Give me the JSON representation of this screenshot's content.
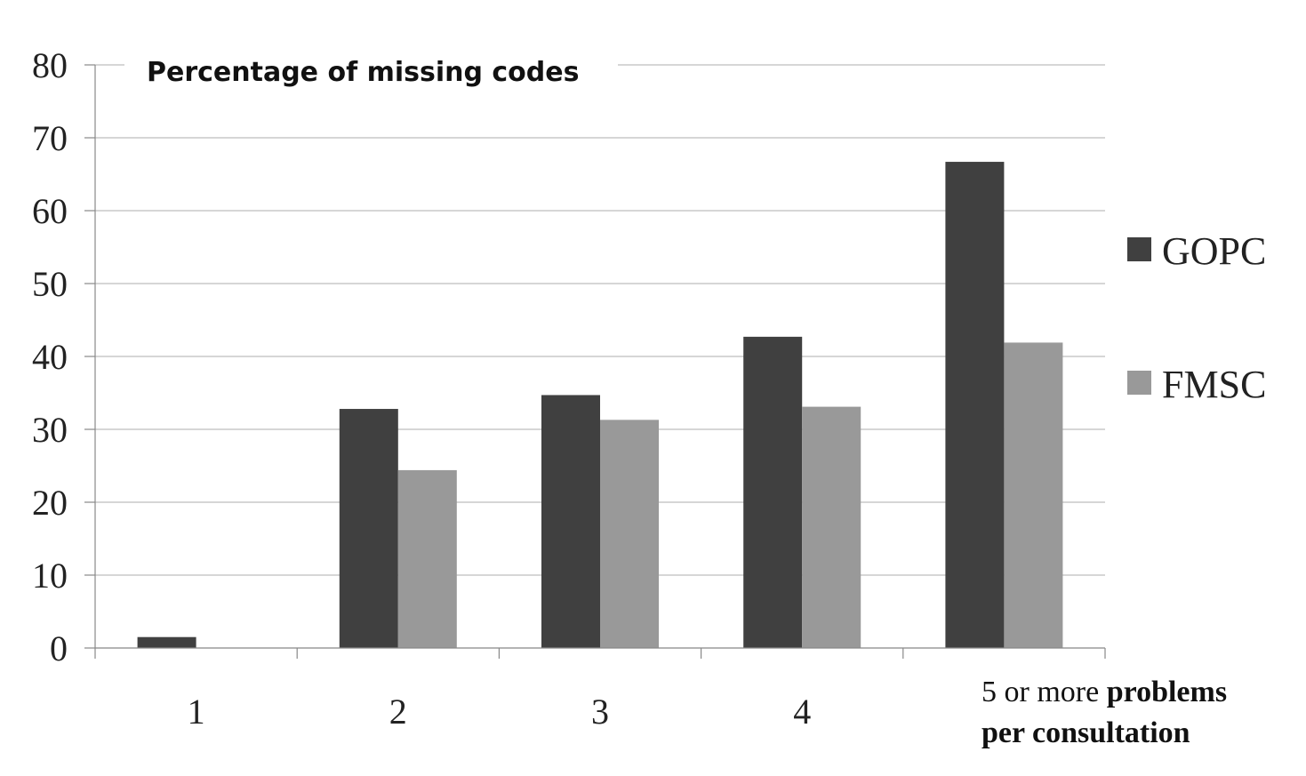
{
  "chart_data": {
    "type": "bar",
    "title": "Percentage of missing codes",
    "categories": [
      "1",
      "2",
      "3",
      "4",
      "5 or more"
    ],
    "xlabel_suffix": "problems per consultation",
    "xlabel_suffix_line1": "problems",
    "xlabel_suffix_line2": "per consultation",
    "ylabel": "",
    "ylim": [
      0,
      80
    ],
    "yticks": [
      0,
      10,
      20,
      30,
      40,
      50,
      60,
      70,
      80
    ],
    "grid": true,
    "legend_position": "right",
    "series": [
      {
        "name": "GOPC",
        "color": "#404040",
        "values": [
          1.5,
          32.8,
          34.7,
          42.7,
          66.7
        ]
      },
      {
        "name": "FMSC",
        "color": "#999999",
        "values": [
          0,
          24.4,
          31.3,
          33.1,
          41.9
        ]
      }
    ]
  }
}
